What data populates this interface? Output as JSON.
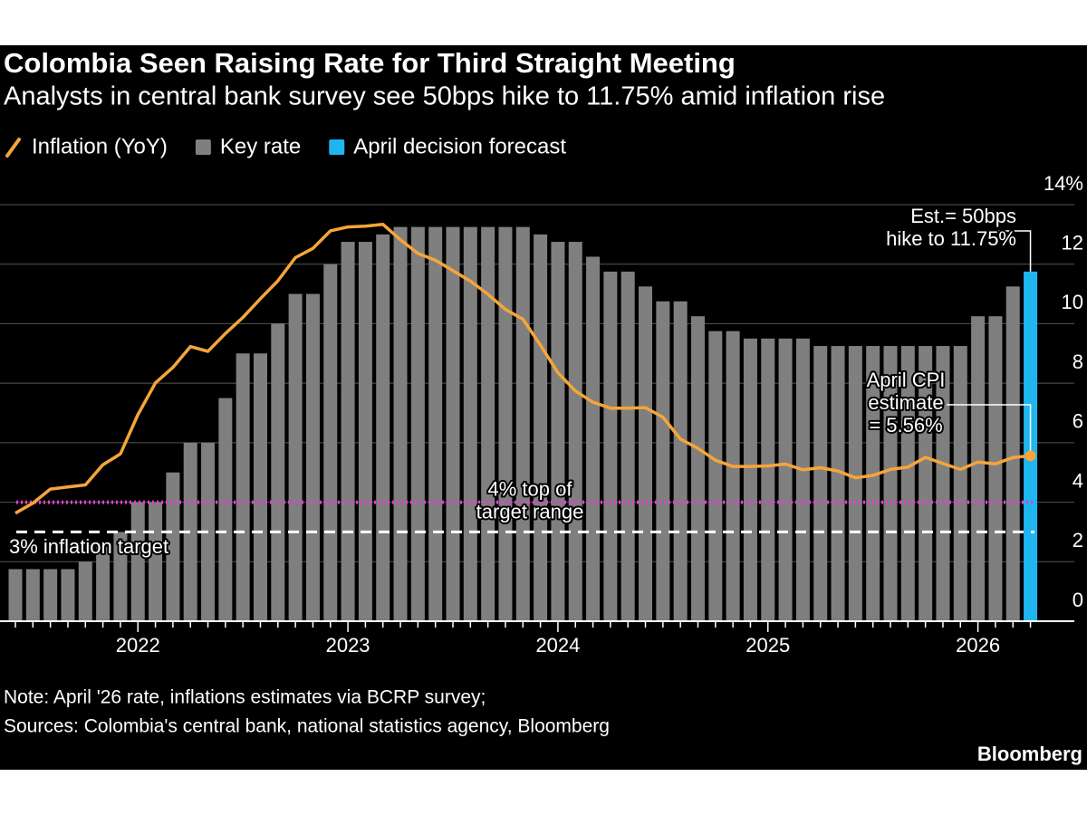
{
  "chart_data": {
    "type": "bar",
    "title": "Colombia Seen Raising Rate for Third Straight Meeting",
    "subtitle": "Analysts in central bank survey see 50bps hike to 11.75% amid inflation rise",
    "categories": [
      null,
      null,
      null,
      null,
      null,
      null,
      null,
      "2022",
      null,
      null,
      null,
      null,
      null,
      null,
      null,
      null,
      null,
      null,
      null,
      "2023",
      null,
      null,
      null,
      null,
      null,
      null,
      null,
      null,
      null,
      null,
      null,
      "2024",
      null,
      null,
      null,
      null,
      null,
      null,
      null,
      null,
      null,
      null,
      null,
      "2025",
      null,
      null,
      null,
      null,
      null,
      null,
      null,
      null,
      null,
      null,
      null,
      "2026",
      null,
      null,
      null
    ],
    "series": [
      {
        "name": "Inflation (YoY)",
        "type": "line",
        "color": "#f5a53a",
        "values": [
          3.63,
          3.97,
          4.44,
          4.51,
          4.58,
          5.26,
          5.62,
          6.94,
          8.01,
          8.53,
          9.23,
          9.07,
          9.67,
          10.21,
          10.84,
          11.44,
          12.22,
          12.53,
          13.12,
          13.25,
          13.28,
          13.34,
          12.82,
          12.36,
          12.13,
          11.78,
          11.43,
          10.99,
          10.48,
          10.15,
          9.28,
          8.35,
          7.74,
          7.36,
          7.16,
          7.16,
          7.18,
          6.86,
          6.12,
          5.81,
          5.41,
          5.2,
          5.2,
          5.22,
          5.28,
          5.09,
          5.16,
          5.05,
          4.82,
          4.9,
          5.1,
          5.18,
          5.51,
          5.3,
          5.1,
          5.35,
          5.29,
          5.5,
          5.56
        ]
      },
      {
        "name": "Key rate",
        "type": "bar",
        "color": "#7f7f7f",
        "values": [
          1.75,
          1.75,
          1.75,
          1.75,
          2.0,
          2.5,
          3.0,
          4.0,
          4.0,
          5.0,
          6.0,
          6.0,
          7.5,
          9.0,
          9.0,
          10.0,
          11.0,
          11.0,
          12.0,
          12.75,
          12.75,
          13.0,
          13.25,
          13.25,
          13.25,
          13.25,
          13.25,
          13.25,
          13.25,
          13.25,
          13.0,
          12.75,
          12.75,
          12.25,
          11.75,
          11.75,
          11.25,
          10.75,
          10.75,
          10.25,
          9.75,
          9.75,
          9.5,
          9.5,
          9.5,
          9.5,
          9.25,
          9.25,
          9.25,
          9.25,
          9.25,
          9.25,
          9.25,
          9.25,
          9.25,
          10.25,
          10.25,
          11.25,
          null
        ]
      },
      {
        "name": "April decision forecast",
        "type": "bar",
        "color": "#1fb5f0",
        "values": [
          null,
          null,
          null,
          null,
          null,
          null,
          null,
          null,
          null,
          null,
          null,
          null,
          null,
          null,
          null,
          null,
          null,
          null,
          null,
          null,
          null,
          null,
          null,
          null,
          null,
          null,
          null,
          null,
          null,
          null,
          null,
          null,
          null,
          null,
          null,
          null,
          null,
          null,
          null,
          null,
          null,
          null,
          null,
          null,
          null,
          null,
          null,
          null,
          null,
          null,
          null,
          null,
          null,
          null,
          null,
          null,
          null,
          null,
          11.75
        ]
      }
    ],
    "ylim": [
      0,
      14
    ],
    "yticks": [
      0,
      2,
      4,
      6,
      8,
      10,
      12,
      {
        "value": 14,
        "label": "14%"
      }
    ],
    "grid": true,
    "reference_lines": [
      {
        "value": 4,
        "label": [
          "4% top of",
          "target range"
        ],
        "color": "#e23fce",
        "style": "dotted"
      },
      {
        "value": 3,
        "label": [
          "3% inflation target"
        ],
        "color": "#ffffff",
        "style": "dashed"
      }
    ],
    "annotations": [
      {
        "text": [
          "Est.= 50bps",
          "hike to 11.75%"
        ]
      },
      {
        "text": [
          "April CPI",
          "estimate",
          "= 5.56%"
        ]
      }
    ],
    "notes": [
      "Note: April '26 rate, inflations estimates via BCRP survey;",
      "Sources: Colombia's central bank, national statistics agency, Bloomberg"
    ],
    "source": "Bloomberg"
  }
}
